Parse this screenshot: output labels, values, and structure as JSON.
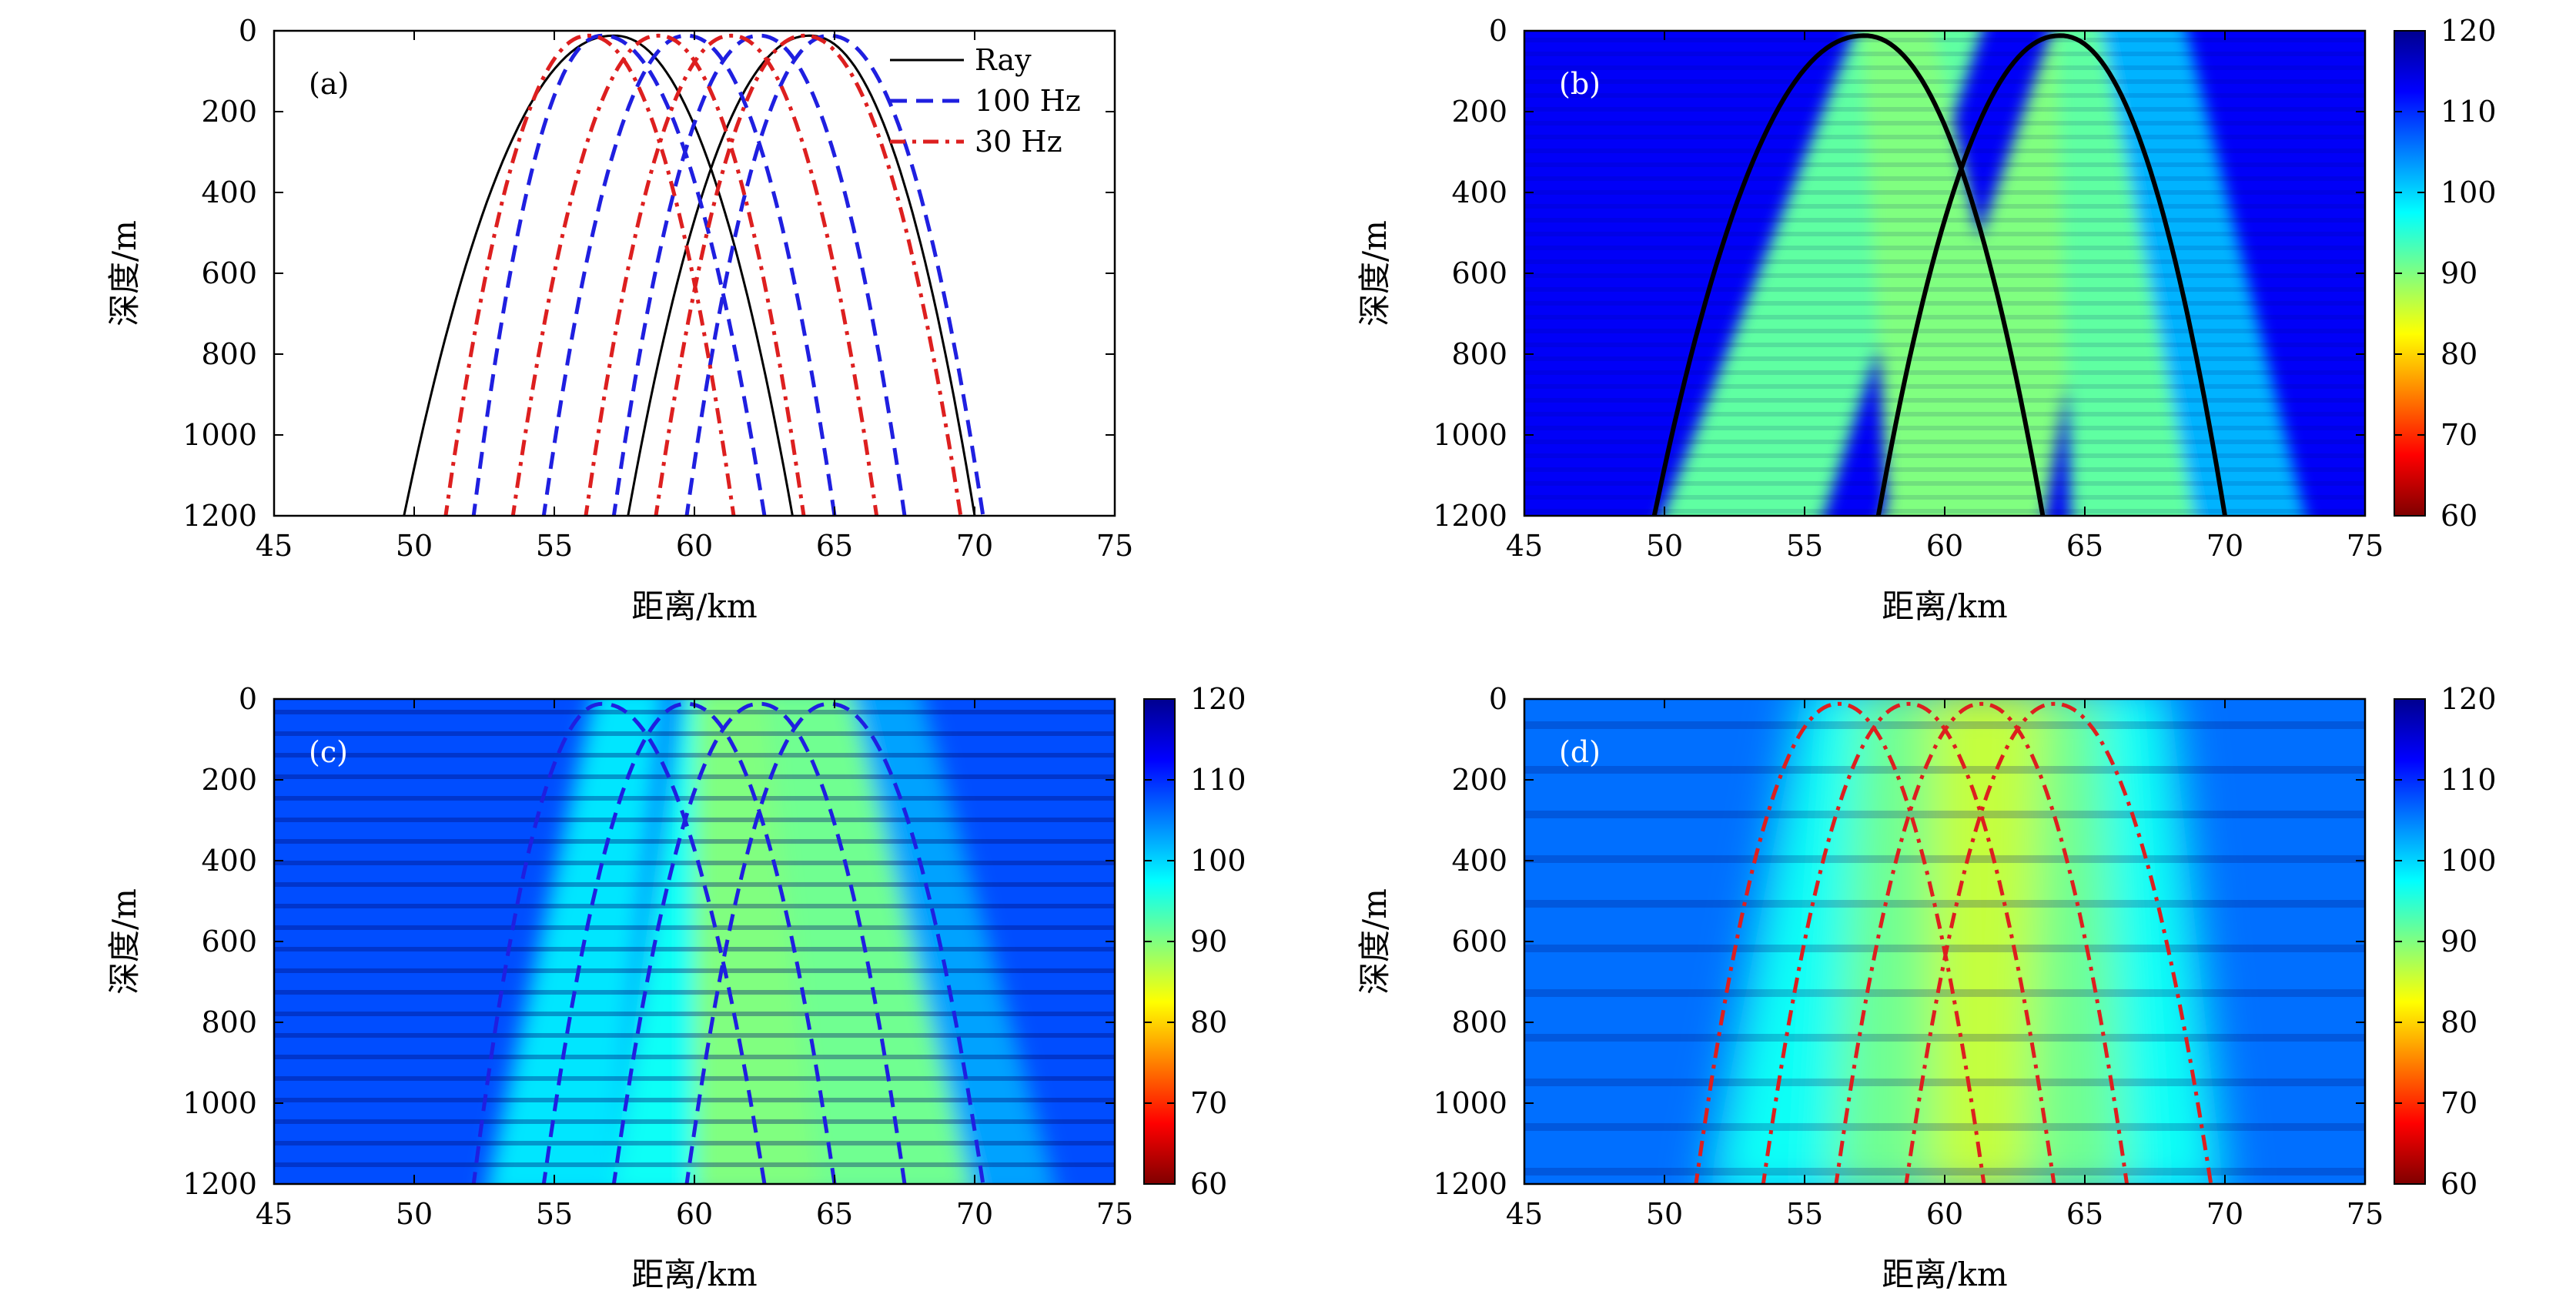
{
  "colorbar": {
    "ticks": [
      60,
      70,
      80,
      90,
      100,
      110,
      120
    ],
    "range": [
      60,
      120
    ],
    "stops": [
      "#7f0000",
      "#ff0000",
      "#ff8000",
      "#ffff00",
      "#80ff80",
      "#00ffff",
      "#0080ff",
      "#0000ff",
      "#00008f"
    ]
  },
  "colors": {
    "ray": "#000000",
    "hz100": "#1f1fe0",
    "hz30": "#dd1f1f"
  },
  "chart_data": [
    {
      "id": "a",
      "type": "line",
      "panel_label": "(a)",
      "xlabel": "距离/km",
      "ylabel": "深度/m",
      "xlim": [
        45,
        75
      ],
      "ylim": [
        1200,
        0
      ],
      "xticks": [
        45,
        50,
        55,
        60,
        65,
        70,
        75
      ],
      "yticks": [
        0,
        200,
        400,
        600,
        800,
        1000,
        1200
      ],
      "legend_position": "top-right",
      "series": [
        {
          "name": "Ray",
          "style": "solid",
          "color_key": "ray",
          "arches": [
            {
              "apex": 57.1,
              "left": 49.6,
              "right": 63.5
            },
            {
              "apex": 64.1,
              "left": 57.6,
              "right": 70.0
            }
          ]
        },
        {
          "name": "100 Hz",
          "style": "dashed",
          "color_key": "hz100",
          "arches": [
            {
              "apex": 56.7,
              "left": 52.1,
              "right": 62.5
            },
            {
              "apex": 59.7,
              "left": 54.6,
              "right": 65.0
            },
            {
              "apex": 62.3,
              "left": 57.1,
              "right": 67.5
            },
            {
              "apex": 64.8,
              "left": 59.7,
              "right": 70.3
            }
          ]
        },
        {
          "name": "30 Hz",
          "style": "dashdot",
          "color_key": "hz30",
          "arches": [
            {
              "apex": 56.2,
              "left": 51.1,
              "right": 61.4
            },
            {
              "apex": 58.7,
              "left": 53.5,
              "right": 63.9
            },
            {
              "apex": 61.3,
              "left": 56.1,
              "right": 66.5
            },
            {
              "apex": 63.9,
              "left": 58.6,
              "right": 69.5
            }
          ]
        }
      ]
    },
    {
      "id": "b",
      "type": "heatmap",
      "panel_label": "(b)",
      "xlabel": "距离/km",
      "ylabel": "深度/m",
      "xlim": [
        45,
        75
      ],
      "ylim": [
        1200,
        0
      ],
      "xticks": [
        45,
        50,
        55,
        60,
        65,
        70,
        75
      ],
      "yticks": [
        0,
        200,
        400,
        600,
        800,
        1000,
        1200
      ],
      "colorbar_range": [
        60,
        120
      ],
      "background_value": 113,
      "bands": [
        {
          "top": [
            57.0,
            61.5
          ],
          "bottom": [
            49.7,
            55.5
          ],
          "value": 92
        },
        {
          "top": [
            57.0,
            59.5
          ],
          "bottom": [
            58.0,
            63.5
          ],
          "value": 90
        },
        {
          "top": [
            64.0,
            66.5
          ],
          "bottom": [
            57.6,
            63.5
          ],
          "value": 90
        },
        {
          "top": [
            64.0,
            66.0
          ],
          "bottom": [
            64.5,
            70.5
          ],
          "value": 92
        },
        {
          "top": [
            65.5,
            68.5
          ],
          "bottom": [
            69.0,
            73.0
          ],
          "value": 102
        }
      ],
      "overlay": {
        "style": "solid",
        "color_key": "ray",
        "arches": [
          {
            "apex": 57.1,
            "left": 49.6,
            "right": 63.5
          },
          {
            "apex": 64.1,
            "left": 57.6,
            "right": 70.0
          }
        ]
      }
    },
    {
      "id": "c",
      "type": "heatmap",
      "panel_label": "(c)",
      "xlabel": "距离/km",
      "ylabel": "深度/m",
      "xlim": [
        45,
        75
      ],
      "ylim": [
        1200,
        0
      ],
      "xticks": [
        45,
        50,
        55,
        60,
        65,
        70,
        75
      ],
      "yticks": [
        0,
        200,
        400,
        600,
        800,
        1000,
        1200
      ],
      "colorbar_range": [
        60,
        120
      ],
      "background_value": 108,
      "bands": [
        {
          "top": [
            56.5,
            59.0
          ],
          "bottom": [
            52.5,
            57.0
          ],
          "value": 99
        },
        {
          "top": [
            59.5,
            62.0
          ],
          "bottom": [
            57.0,
            60.0
          ],
          "value": 97
        },
        {
          "top": [
            60.0,
            62.5
          ],
          "bottom": [
            60.0,
            64.5
          ],
          "value": 90
        },
        {
          "top": [
            62.5,
            65.5
          ],
          "bottom": [
            64.5,
            70.0
          ],
          "value": 91
        },
        {
          "top": [
            65.5,
            68.0
          ],
          "bottom": [
            70.0,
            73.0
          ],
          "value": 103
        }
      ],
      "overlay": {
        "style": "dashed",
        "color_key": "hz100",
        "arches": [
          {
            "apex": 56.7,
            "left": 52.1,
            "right": 62.5
          },
          {
            "apex": 59.7,
            "left": 54.6,
            "right": 65.0
          },
          {
            "apex": 62.3,
            "left": 57.1,
            "right": 67.5
          },
          {
            "apex": 64.8,
            "left": 59.7,
            "right": 70.3
          }
        ]
      }
    },
    {
      "id": "d",
      "type": "heatmap",
      "panel_label": "(d)",
      "xlabel": "距离/km",
      "ylabel": "深度/m",
      "xlim": [
        45,
        75
      ],
      "ylim": [
        1200,
        0
      ],
      "xticks": [
        45,
        50,
        55,
        60,
        65,
        70,
        75
      ],
      "yticks": [
        0,
        200,
        400,
        600,
        800,
        1000,
        1200
      ],
      "colorbar_range": [
        60,
        120
      ],
      "background_value": 106,
      "bands": [
        {
          "top": [
            55.0,
            68.0
          ],
          "bottom": [
            51.5,
            70.0
          ],
          "value": 97
        },
        {
          "top": [
            57.0,
            65.5
          ],
          "bottom": [
            56.0,
            66.5
          ],
          "value": 91
        },
        {
          "top": [
            59.5,
            63.5
          ],
          "bottom": [
            59.5,
            63.0
          ],
          "value": 86
        }
      ],
      "overlay": {
        "style": "dashdot",
        "color_key": "hz30",
        "arches": [
          {
            "apex": 56.2,
            "left": 51.1,
            "right": 61.4
          },
          {
            "apex": 58.7,
            "left": 53.5,
            "right": 63.9
          },
          {
            "apex": 61.3,
            "left": 56.1,
            "right": 66.5
          },
          {
            "apex": 63.9,
            "left": 58.6,
            "right": 69.5
          }
        ]
      }
    }
  ]
}
